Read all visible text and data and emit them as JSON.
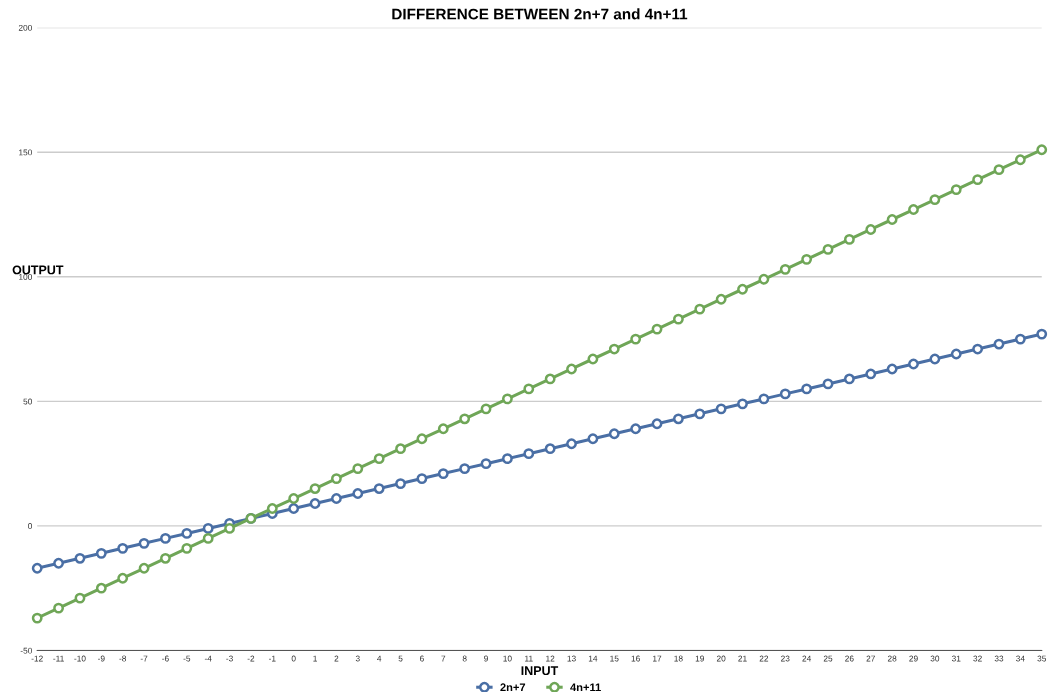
{
  "chart_data": {
    "type": "line",
    "title": "DIFFERENCE BETWEEN 2n+7 and 4n+11",
    "xlabel": "INPUT",
    "ylabel": "OUTPUT",
    "categories": [
      "-12",
      "-11",
      "-10",
      "-9",
      "-8",
      "-7",
      "-6",
      "-5",
      "-4",
      "-3",
      "-2",
      "-1",
      "0",
      "1",
      "2",
      "3",
      "4",
      "5",
      "6",
      "7",
      "8",
      "9",
      "10",
      "11",
      "12",
      "13",
      "14",
      "15",
      "16",
      "17",
      "18",
      "19",
      "20",
      "21",
      "22",
      "23",
      "24",
      "25",
      "26",
      "27",
      "28",
      "29",
      "30",
      "31",
      "32",
      "33",
      "34",
      "35"
    ],
    "series": [
      {
        "name": "2n+7",
        "color": "#4a6fa5",
        "values": [
          -17,
          -15,
          -13,
          -11,
          -9,
          -7,
          -5,
          -3,
          -1,
          1,
          3,
          5,
          7,
          9,
          11,
          13,
          15,
          17,
          19,
          21,
          23,
          25,
          27,
          29,
          31,
          33,
          35,
          37,
          39,
          41,
          43,
          45,
          47,
          49,
          51,
          53,
          55,
          57,
          59,
          61,
          63,
          65,
          67,
          69,
          71,
          73,
          75,
          77
        ]
      },
      {
        "name": "4n+11",
        "color": "#6fa657",
        "values": [
          -37,
          -33,
          -29,
          -25,
          -21,
          -17,
          -13,
          -9,
          -5,
          -1,
          3,
          7,
          11,
          15,
          19,
          23,
          27,
          31,
          35,
          39,
          43,
          47,
          51,
          55,
          59,
          63,
          67,
          71,
          75,
          79,
          83,
          87,
          91,
          95,
          99,
          103,
          107,
          111,
          115,
          119,
          123,
          127,
          131,
          135,
          139,
          143,
          147,
          151
        ]
      }
    ],
    "ylim": [
      -50,
      200
    ],
    "yticks": [
      -50,
      0,
      50,
      100,
      150,
      200
    ],
    "grid": "y",
    "legend": "bottom",
    "marker": "circle",
    "line_style": "solid"
  }
}
